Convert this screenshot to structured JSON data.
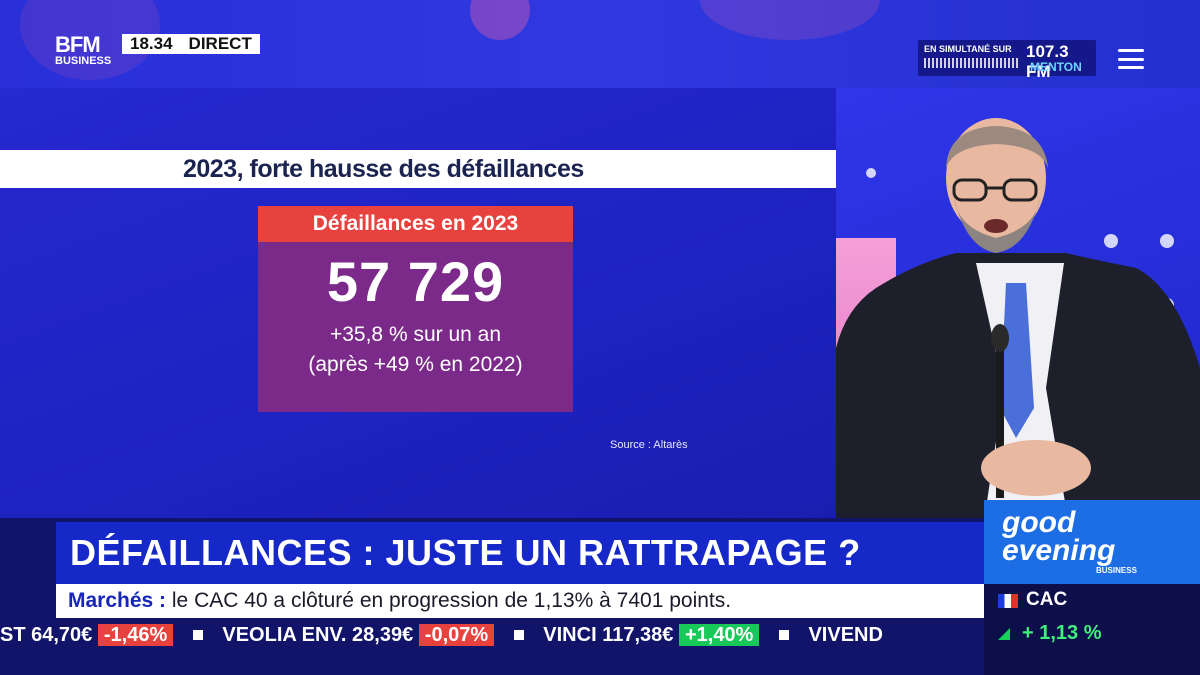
{
  "header": {
    "brand_top": "BFM",
    "brand_bottom": "BUSINESS",
    "time": "18.34",
    "live": "DIRECT",
    "radio_label": "EN SIMULTANÉ SUR",
    "radio_frequency": "107.3 FM",
    "radio_city": "MENTON"
  },
  "slide": {
    "title": "2023, forte hausse des défaillances",
    "card_header": "Défaillances en 2023",
    "card_value": "57 729",
    "card_line1": "+35,8 % sur un an",
    "card_line2": "(après +49 % en 2022)",
    "source": "Source : Altarès"
  },
  "lower_third": {
    "headline": "DÉFAILLANCES : JUSTE UN RATTRAPAGE ?",
    "show_name_1": "good",
    "show_name_2": "evening",
    "show_sub": "BUSINESS"
  },
  "ticker": {
    "label": "Marchés :",
    "text": "le CAC 40 a clôturé en progression de 1,13% à 7401 points.",
    "items": [
      {
        "name": "ST",
        "value": "64,70€",
        "change": "-1,46%"
      },
      {
        "name": "VEOLIA ENV.",
        "value": "28,39€",
        "change": "-0,07%"
      },
      {
        "name": "VINCI",
        "value": "117,38€",
        "change": "+1,40%"
      },
      {
        "name": "VIVEND",
        "value": "",
        "change": ""
      }
    ]
  },
  "index": {
    "name": "CAC",
    "change": "+ 1,13 %",
    "colors": {
      "positive": "#18d35a"
    }
  }
}
